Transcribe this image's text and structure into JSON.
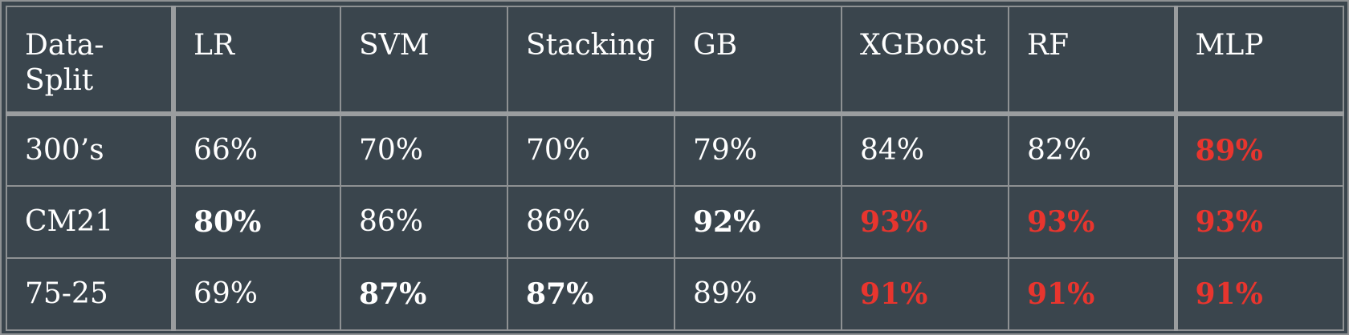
{
  "table": {
    "headers": [
      "Data-\nSplit",
      "LR",
      "SVM",
      "Stacking",
      "GB",
      "XGBoost",
      "RF",
      "MLP"
    ],
    "rows": [
      {
        "split": "300’s",
        "cells": [
          {
            "value": "66%",
            "style": "normal"
          },
          {
            "value": "70%",
            "style": "normal"
          },
          {
            "value": "70%",
            "style": "normal"
          },
          {
            "value": "79%",
            "style": "normal"
          },
          {
            "value": "84%",
            "style": "normal"
          },
          {
            "value": "82%",
            "style": "normal"
          },
          {
            "value": "89%",
            "style": "best"
          }
        ]
      },
      {
        "split": "CM21",
        "cells": [
          {
            "value": "80%",
            "style": "bold"
          },
          {
            "value": "86%",
            "style": "normal"
          },
          {
            "value": "86%",
            "style": "normal"
          },
          {
            "value": "92%",
            "style": "bold"
          },
          {
            "value": "93%",
            "style": "best"
          },
          {
            "value": "93%",
            "style": "best"
          },
          {
            "value": "93%",
            "style": "best"
          }
        ]
      },
      {
        "split": "75-25",
        "cells": [
          {
            "value": "69%",
            "style": "normal"
          },
          {
            "value": "87%",
            "style": "bold"
          },
          {
            "value": "87%",
            "style": "bold"
          },
          {
            "value": "89%",
            "style": "normal"
          },
          {
            "value": "91%",
            "style": "best"
          },
          {
            "value": "91%",
            "style": "best"
          },
          {
            "value": "91%",
            "style": "best"
          }
        ]
      }
    ]
  },
  "colors": {
    "background": "#3a454d",
    "text": "#ffffff",
    "best": "#e8352e",
    "grid": "#8e9193"
  }
}
